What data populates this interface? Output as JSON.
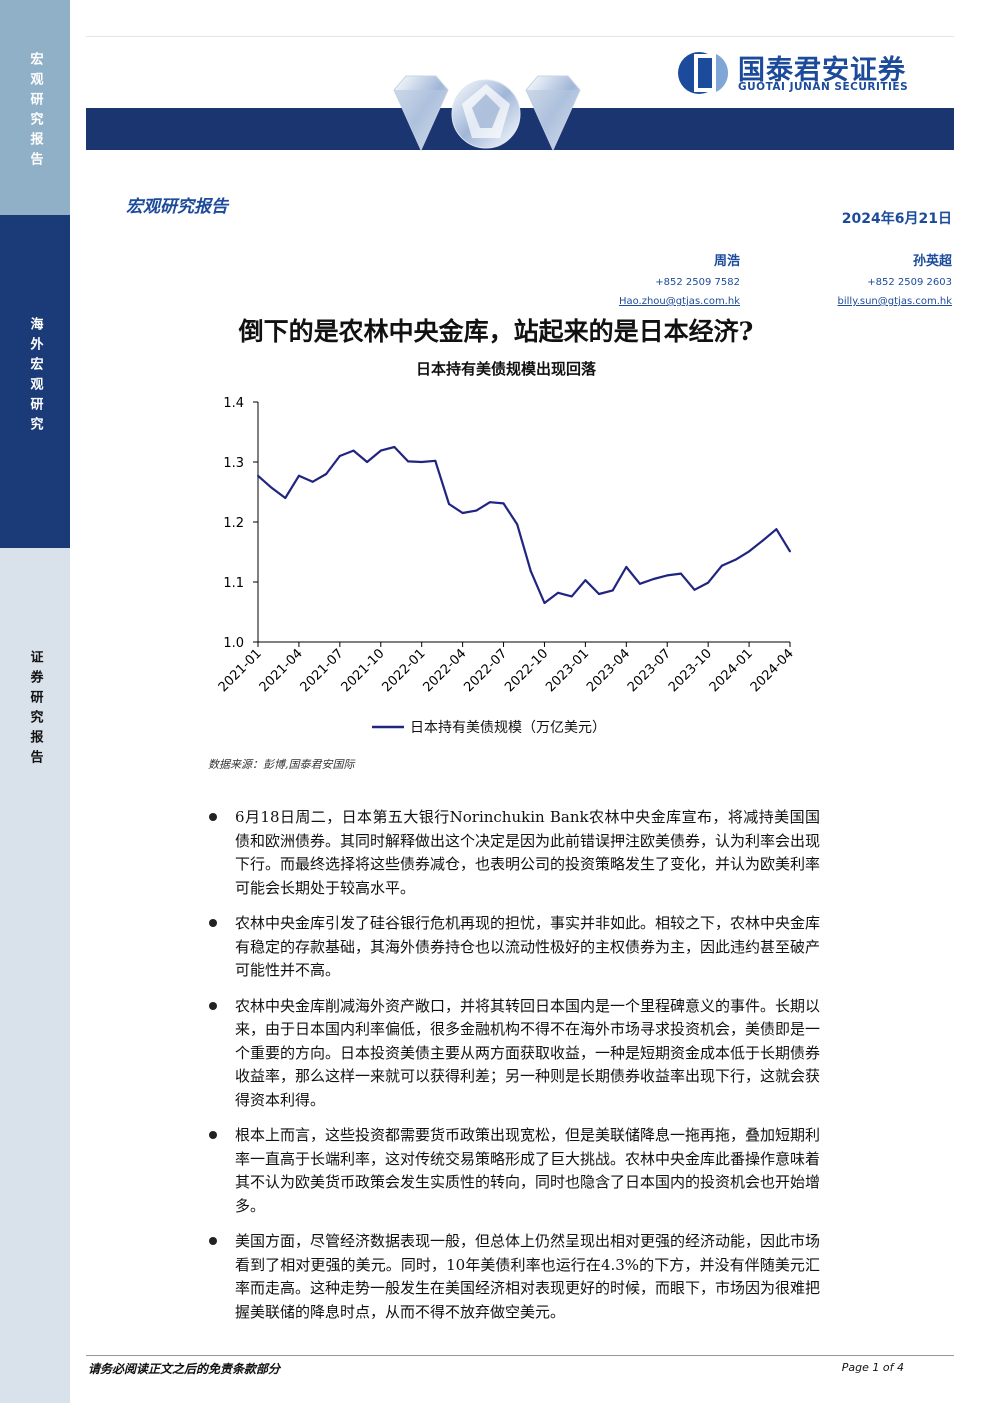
{
  "sidebar": {
    "seg1": "宏观研究报告",
    "seg2": "海外宏观研究",
    "seg3": "证券研究报告"
  },
  "header": {
    "company_cn": "国泰君安证券",
    "company_en": "GUOTAI JUNAN SECURITIES",
    "report_type": "宏观研究报告",
    "date": "2024年6月21日"
  },
  "authors": [
    {
      "name": "周浩",
      "phone": "+852 2509 7582",
      "email": "Hao.zhou@gtjas.com.hk"
    },
    {
      "name": "孙英超",
      "phone": "+852 2509 2603",
      "email": "billy.sun@gtjas.com.hk"
    }
  ],
  "title": "倒下的是农林中央金库，站起来的是日本经济?",
  "chart_data": {
    "type": "line",
    "title": "日本持有美债规模出现回落",
    "x": [
      "2021-01",
      "2021-02",
      "2021-03",
      "2021-04",
      "2021-05",
      "2021-06",
      "2021-07",
      "2021-08",
      "2021-09",
      "2021-10",
      "2021-11",
      "2021-12",
      "2022-01",
      "2022-02",
      "2022-03",
      "2022-04",
      "2022-05",
      "2022-06",
      "2022-07",
      "2022-08",
      "2022-09",
      "2022-10",
      "2022-11",
      "2022-12",
      "2023-01",
      "2023-02",
      "2023-03",
      "2023-04",
      "2023-05",
      "2023-06",
      "2023-07",
      "2023-08",
      "2023-09",
      "2023-10",
      "2023-11",
      "2023-12",
      "2024-01",
      "2024-02",
      "2024-03",
      "2024-04"
    ],
    "x_tick_labels": [
      "2021-01",
      "2021-04",
      "2021-07",
      "2021-10",
      "2022-01",
      "2022-04",
      "2022-07",
      "2022-10",
      "2023-01",
      "2023-04",
      "2023-07",
      "2023-10",
      "2024-01",
      "2024-04"
    ],
    "series": [
      {
        "name": "日本持有美债规模（万亿美元）",
        "values": [
          1.277,
          1.257,
          1.24,
          1.277,
          1.267,
          1.28,
          1.31,
          1.319,
          1.3,
          1.319,
          1.325,
          1.301,
          1.3,
          1.302,
          1.23,
          1.215,
          1.219,
          1.233,
          1.231,
          1.196,
          1.118,
          1.065,
          1.082,
          1.076,
          1.103,
          1.08,
          1.086,
          1.125,
          1.097,
          1.105,
          1.111,
          1.114,
          1.087,
          1.099,
          1.127,
          1.137,
          1.151,
          1.169,
          1.188,
          1.151
        ]
      }
    ],
    "ylim": [
      1.0,
      1.4
    ],
    "yticks": [
      "1.0",
      "1.1",
      "1.2",
      "1.3",
      "1.4"
    ],
    "grid": false,
    "legend_position": "bottom",
    "color": "#1f2580"
  },
  "source": "数据来源：彭博,国泰君安国际",
  "bullets": [
    "6月18日周二，日本第五大银行Norinchukin Bank农林中央金库宣布，将减持美国国债和欧洲债券。其同时解释做出这个决定是因为此前错误押注欧美债券，认为利率会出现下行。而最终选择将这些债券减仓，也表明公司的投资策略发生了变化，并认为欧美利率可能会长期处于较高水平。",
    "农林中央金库引发了硅谷银行危机再现的担忧，事实并非如此。相较之下，农林中央金库有稳定的存款基础，其海外债券持仓也以流动性极好的主权债券为主，因此违约甚至破产可能性并不高。",
    "农林中央金库削减海外资产敞口，并将其转回日本国内是一个里程碑意义的事件。长期以来，由于日本国内利率偏低，很多金融机构不得不在海外市场寻求投资机会，美债即是一个重要的方向。日本投资美债主要从两方面获取收益，一种是短期资金成本低于长期债券收益率，那么这样一来就可以获得利差；另一种则是长期债券收益率出现下行，这就会获得资本利得。",
    "根本上而言，这些投资都需要货币政策出现宽松，但是美联储降息一拖再拖，叠加短期利率一直高于长端利率，这对传统交易策略形成了巨大挑战。农林中央金库此番操作意味着其不认为欧美货币政策会发生实质性的转向，同时也隐含了日本国内的投资机会也开始增多。",
    "美国方面，尽管经济数据表现一般，但总体上仍然呈现出相对更强的经济动能，因此市场看到了相对更强的美元。同时，10年美债利率也运行在4.3%的下方，并没有伴随美元汇率而走高。这种走势一般发生在美国经济相对表现更好的时候，而眼下，市场因为很难把握美联储的降息时点，从而不得不放弃做空美元。"
  ],
  "footer": {
    "disclaimer": "请务必阅读正文之后的免责条款部分",
    "page": "Page 1 of 4"
  }
}
